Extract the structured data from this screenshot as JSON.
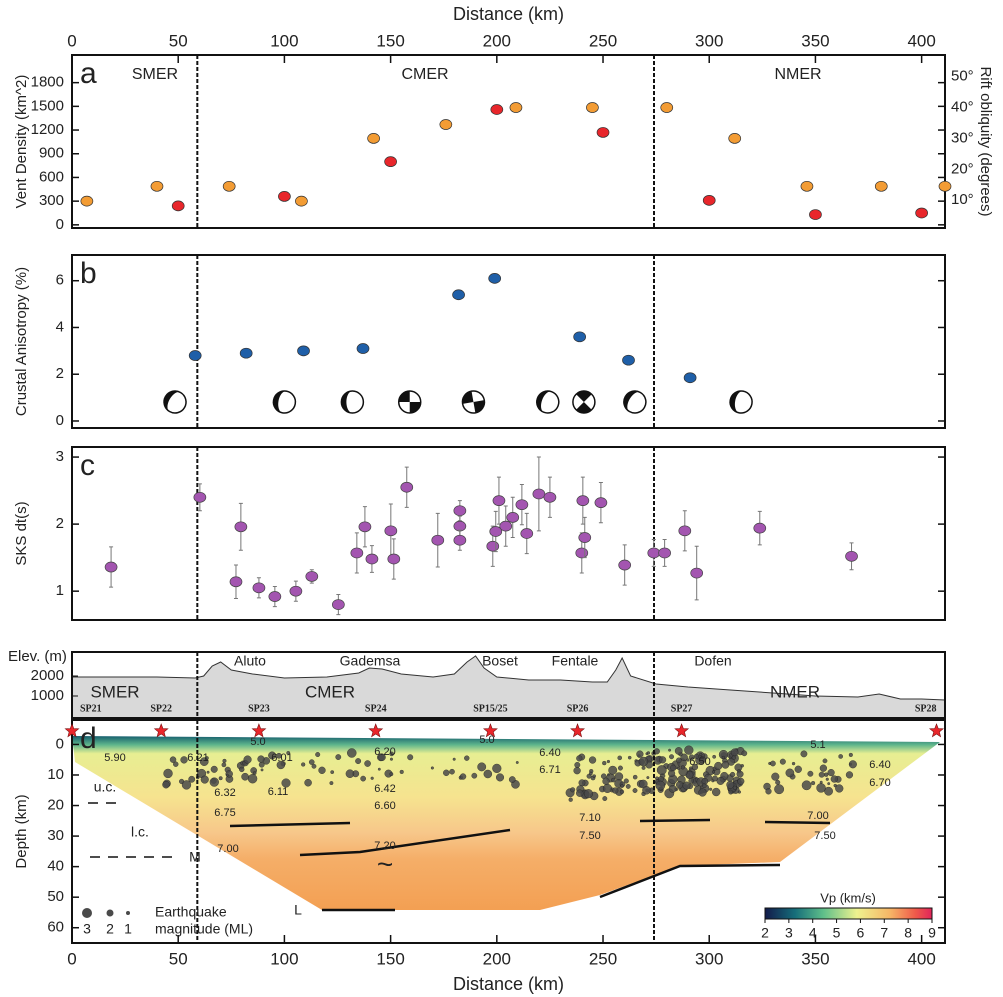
{
  "chart_data": [
    {
      "type": "scatter",
      "panel_label": "a",
      "x_label": "Distance (km)",
      "xlim": [
        0,
        411
      ],
      "xticks": [
        0,
        50,
        100,
        150,
        200,
        250,
        300,
        350,
        400
      ],
      "regions": [
        "SMER",
        "CMER",
        "NMER"
      ],
      "boundaries": [
        59,
        274
      ],
      "y_label": "Vent Density (km^2)",
      "ylim": [
        -40,
        2150
      ],
      "yticks": [
        0,
        300,
        600,
        900,
        1200,
        1500,
        1800
      ],
      "y2_label": "Rift obliquity (degrees)",
      "y2lim": [
        1,
        57
      ],
      "y2ticks": [
        {
          "value": 10,
          "label": "10°"
        },
        {
          "value": 20,
          "label": "20°"
        },
        {
          "value": 30,
          "label": "30°"
        },
        {
          "value": 40,
          "label": "40°"
        },
        {
          "value": 50,
          "label": "50°"
        }
      ],
      "series": [
        {
          "color": "#e8262b",
          "x": [
            50,
            100,
            150,
            200,
            250,
            300,
            350,
            400
          ],
          "values": [
            240,
            360,
            800,
            1460,
            1170,
            310,
            130,
            150
          ]
        },
        {
          "color": "#f39c34",
          "axis": "y2",
          "x": [
            7,
            40,
            74,
            108,
            142,
            176,
            209,
            245,
            280,
            312,
            346,
            381,
            411
          ],
          "values": [
            9.7,
            14.5,
            14.5,
            9.7,
            30,
            34.5,
            40,
            40,
            40,
            30,
            14.5,
            14.5,
            14.5
          ]
        }
      ]
    },
    {
      "type": "scatter",
      "panel_label": "b",
      "xlim": [
        0,
        411
      ],
      "boundaries": [
        59,
        274
      ],
      "y_label": "Crustal Anisotropy (%)",
      "ylim": [
        -0.3,
        7.1
      ],
      "yticks": [
        0,
        2,
        4,
        6
      ],
      "series": [
        {
          "color": "#1f5fa8",
          "x": [
            58,
            82,
            109,
            137,
            182,
            199,
            239,
            262,
            291
          ],
          "values": [
            2.8,
            2.9,
            3.0,
            3.1,
            5.4,
            6.1,
            3.6,
            2.6,
            1.85
          ]
        }
      ],
      "focal_mechanisms_x": [
        48.5,
        100,
        132,
        159,
        189,
        224,
        241,
        265,
        315
      ]
    },
    {
      "type": "errorbar",
      "panel_label": "c",
      "xlim": [
        0,
        411
      ],
      "boundaries": [
        59,
        274
      ],
      "y_label": "SKS dt(s)",
      "ylim": [
        0.57,
        3.15
      ],
      "yticks": [
        1,
        2,
        3
      ],
      "series": [
        {
          "color": "#a355b0",
          "x": [
            18.4,
            60.2,
            77.2,
            79.5,
            88,
            95.5,
            105.4,
            112.9,
            125.4,
            134.1,
            137.9,
            141.2,
            150.1,
            151.5,
            157.6,
            172.2,
            182.6,
            182.6,
            182.6,
            198.1,
            199.5,
            201,
            204.2,
            207.5,
            211.8,
            214.1,
            219.8,
            225,
            240,
            240.5,
            241.4,
            249,
            260.2,
            273.9,
            279,
            288.5,
            294.1,
            323.8,
            367
          ],
          "values": [
            1.36,
            2.4,
            1.14,
            1.96,
            1.05,
            0.92,
            1.0,
            1.22,
            0.8,
            1.57,
            1.96,
            1.48,
            1.9,
            1.48,
            2.55,
            1.76,
            2.2,
            1.97,
            1.76,
            1.67,
            1.89,
            2.35,
            1.97,
            2.1,
            2.29,
            1.86,
            2.45,
            2.4,
            1.57,
            2.35,
            1.8,
            2.32,
            1.39,
            1.57,
            1.57,
            1.9,
            1.27,
            1.94,
            1.52
          ],
          "errors": [
            0.3,
            0.2,
            0.25,
            0.35,
            0.15,
            0.15,
            0.15,
            0.1,
            0.15,
            0.3,
            0.3,
            0.2,
            0.4,
            0.3,
            0.3,
            0.4,
            0.15,
            0.15,
            0.15,
            0.3,
            0.3,
            0.35,
            0.3,
            0.3,
            0.3,
            0.3,
            0.55,
            0.3,
            0.3,
            0.35,
            0.3,
            0.3,
            0.3,
            0.2,
            0.2,
            0.3,
            0.4,
            0.25,
            0.2
          ]
        }
      ]
    },
    {
      "type": "section",
      "panel_label": "d",
      "x_label": "Distance (km)",
      "xlim": [
        0,
        411
      ],
      "xticks": [
        0,
        50,
        100,
        150,
        200,
        250,
        300,
        350,
        400
      ],
      "boundaries": [
        59,
        274
      ],
      "elevation": {
        "y_label": "Elev. (m)",
        "ylim": [
          -100,
          3200
        ],
        "yticks": [
          1000,
          2000
        ],
        "x": [
          0,
          20,
          40,
          58,
          62,
          66,
          70,
          75,
          85,
          100,
          120,
          135,
          140,
          146,
          155,
          170,
          180,
          186,
          190,
          194,
          200,
          215,
          230,
          245,
          252,
          256,
          259,
          263,
          275,
          290,
          310,
          330,
          350,
          370,
          380,
          390,
          400,
          411
        ],
        "values": [
          1950,
          1950,
          1950,
          1900,
          2000,
          2500,
          2700,
          2300,
          2100,
          1900,
          1950,
          2150,
          2400,
          2350,
          2100,
          1950,
          2100,
          2700,
          3000,
          2400,
          1950,
          1800,
          1800,
          1700,
          1700,
          2300,
          2900,
          2000,
          1600,
          1450,
          1300,
          1150,
          1000,
          950,
          1100,
          850,
          850,
          800
        ],
        "regions": [
          "SMER",
          "CMER",
          "NMER"
        ],
        "places": [
          "Aluto",
          "Gademsa",
          "Boset",
          "Fentale",
          "Dofen"
        ]
      },
      "stations": {
        "labels": [
          "SP21",
          "SP22",
          "SP23",
          "SP24",
          "SP15/25",
          "SP26",
          "SP27",
          "SP28"
        ],
        "x": [
          0,
          42,
          88,
          143,
          197,
          238,
          287,
          407
        ]
      },
      "y_label": "Depth (km)",
      "ylim": [
        65,
        -8
      ],
      "yticks": [
        0,
        10,
        20,
        30,
        40,
        50,
        60
      ],
      "velocity_labels": [
        "5.90",
        "6.21",
        "6.01",
        "6.20",
        "5.0",
        "5.0",
        "6.40",
        "6.71",
        "6.50",
        "5.1",
        "6.40",
        "6.70",
        "6.32",
        "6.11",
        "6.42",
        "6.60",
        "6.75",
        "7.10",
        "7.00",
        "7.50",
        "7.50",
        "7.00",
        "7.20"
      ],
      "layer_labels": [
        "u.c.",
        "l.c.",
        "M",
        "L",
        "~"
      ],
      "legend": {
        "title": "Earthquake",
        "subtitle": "magnitude  (ML)",
        "sizes": [
          3,
          2,
          1
        ]
      },
      "colorbar": {
        "label": "Vp (km/s)",
        "range": [
          2,
          9
        ],
        "ticks": [
          2,
          3,
          4,
          5,
          6,
          7,
          8,
          9
        ]
      }
    }
  ]
}
